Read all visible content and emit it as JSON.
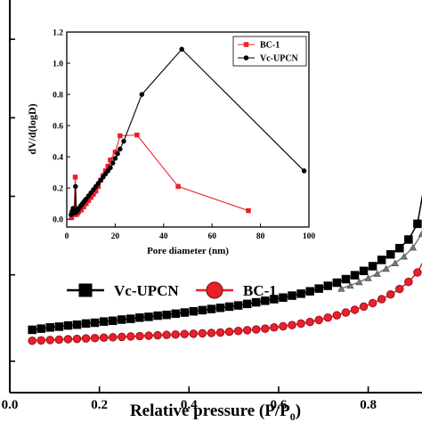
{
  "chart_data": [
    {
      "type": "line",
      "role": "main",
      "xlabel": "Relative pressure (P/P",
      "xlabel_sub": "0",
      "xlabel_close": ")",
      "ylabel": "",
      "xlim": [
        0.0,
        0.93
      ],
      "ylim": [
        0,
        1
      ],
      "x_ticks": [
        "0.0",
        "0.2",
        "0.4",
        "0.6",
        "0.8"
      ],
      "x_tick_values": [
        0.0,
        0.2,
        0.4,
        0.6,
        0.8
      ],
      "y_ticks_unlabeled": [
        0.08,
        0.3,
        0.5,
        0.7,
        0.9
      ],
      "legend_position": "left, below inset",
      "series": [
        {
          "name": "Vc-UPCN",
          "color": "#000000",
          "marker": "square",
          "x": [
            0.05,
            0.07,
            0.09,
            0.11,
            0.13,
            0.15,
            0.17,
            0.19,
            0.21,
            0.23,
            0.25,
            0.27,
            0.29,
            0.31,
            0.33,
            0.35,
            0.37,
            0.39,
            0.41,
            0.43,
            0.45,
            0.47,
            0.49,
            0.51,
            0.53,
            0.55,
            0.57,
            0.59,
            0.61,
            0.63,
            0.65,
            0.67,
            0.69,
            0.71,
            0.73,
            0.75,
            0.77,
            0.79,
            0.81,
            0.83,
            0.85,
            0.87,
            0.89,
            0.91,
            0.93
          ],
          "y": [
            0.16,
            0.163,
            0.166,
            0.168,
            0.171,
            0.173,
            0.176,
            0.178,
            0.181,
            0.183,
            0.186,
            0.188,
            0.191,
            0.193,
            0.196,
            0.198,
            0.201,
            0.204,
            0.207,
            0.21,
            0.213,
            0.216,
            0.219,
            0.222,
            0.226,
            0.23,
            0.234,
            0.238,
            0.242,
            0.247,
            0.252,
            0.258,
            0.265,
            0.272,
            0.28,
            0.289,
            0.299,
            0.31,
            0.322,
            0.338,
            0.352,
            0.368,
            0.39,
            0.43,
            0.56
          ]
        },
        {
          "name": "BC-1",
          "color": "#e8202a",
          "marker": "circle",
          "x": [
            0.05,
            0.07,
            0.09,
            0.11,
            0.13,
            0.15,
            0.17,
            0.19,
            0.21,
            0.23,
            0.25,
            0.27,
            0.29,
            0.31,
            0.33,
            0.35,
            0.37,
            0.39,
            0.41,
            0.43,
            0.45,
            0.47,
            0.49,
            0.51,
            0.53,
            0.55,
            0.57,
            0.59,
            0.61,
            0.63,
            0.65,
            0.67,
            0.69,
            0.71,
            0.73,
            0.75,
            0.77,
            0.79,
            0.81,
            0.83,
            0.85,
            0.87,
            0.89,
            0.91,
            0.93
          ],
          "y": [
            0.132,
            0.133,
            0.134,
            0.135,
            0.136,
            0.137,
            0.138,
            0.139,
            0.14,
            0.141,
            0.142,
            0.143,
            0.144,
            0.145,
            0.146,
            0.147,
            0.148,
            0.149,
            0.15,
            0.151,
            0.152,
            0.153,
            0.155,
            0.157,
            0.159,
            0.161,
            0.163,
            0.166,
            0.169,
            0.172,
            0.176,
            0.18,
            0.185,
            0.191,
            0.197,
            0.204,
            0.211,
            0.219,
            0.228,
            0.238,
            0.25,
            0.264,
            0.282,
            0.306,
            0.35
          ]
        },
        {
          "name": "",
          "color": "#777777",
          "marker": "triangle",
          "x": [
            0.74,
            0.76,
            0.78,
            0.8,
            0.82,
            0.84,
            0.86,
            0.88,
            0.9,
            0.92
          ],
          "y": [
            0.265,
            0.273,
            0.282,
            0.292,
            0.303,
            0.316,
            0.33,
            0.347,
            0.37,
            0.405
          ]
        }
      ]
    },
    {
      "type": "line",
      "role": "inset",
      "xlabel": "Pore diameter (nm)",
      "ylabel": "dV/d(logD)",
      "xlim": [
        0,
        100
      ],
      "ylim": [
        -0.05,
        1.2
      ],
      "x_ticks": [
        "0",
        "20",
        "40",
        "60",
        "80",
        "100"
      ],
      "x_tick_values": [
        0,
        20,
        40,
        60,
        80,
        100
      ],
      "y_ticks": [
        "0.0",
        "0.2",
        "0.4",
        "0.6",
        "0.8",
        "1.0",
        "1.2"
      ],
      "y_tick_values": [
        0.0,
        0.2,
        0.4,
        0.6,
        0.8,
        1.0,
        1.2
      ],
      "legend_position": "top-right",
      "series": [
        {
          "name": "BC-1",
          "color": "#e8202a",
          "marker": "square",
          "x": [
            2.0,
            3.0,
            3.5,
            4.0,
            4.5,
            5.0,
            6.0,
            7.0,
            8.0,
            9.0,
            10.0,
            11.0,
            12.0,
            13.0,
            14.0,
            15.0,
            16.0,
            17.0,
            18.0,
            20.0,
            22.0,
            29.0,
            46.0,
            75.0
          ],
          "y": [
            0.01,
            0.03,
            0.27,
            0.03,
            0.04,
            0.05,
            0.06,
            0.08,
            0.1,
            0.12,
            0.14,
            0.16,
            0.18,
            0.21,
            0.25,
            0.28,
            0.31,
            0.34,
            0.38,
            0.43,
            0.535,
            0.54,
            0.21,
            0.055
          ]
        },
        {
          "name": "Vc-UPCN",
          "color": "#000000",
          "marker": "circle",
          "x": [
            1.8,
            2.2,
            2.6,
            3.0,
            3.3,
            3.6,
            3.9,
            4.2,
            4.6,
            5.0,
            5.5,
            6.0,
            6.5,
            7.0,
            7.5,
            8.0,
            9.0,
            10.0,
            11.0,
            12.0,
            13.0,
            14.0,
            15.0,
            16.0,
            17.0,
            18.0,
            19.0,
            20.0,
            21.0,
            22.0,
            23.5,
            31.0,
            47.5,
            98.0
          ],
          "y": [
            0.03,
            0.05,
            0.07,
            0.06,
            0.04,
            0.21,
            0.06,
            0.05,
            0.06,
            0.07,
            0.08,
            0.09,
            0.1,
            0.11,
            0.12,
            0.13,
            0.15,
            0.17,
            0.19,
            0.21,
            0.23,
            0.25,
            0.27,
            0.29,
            0.31,
            0.33,
            0.36,
            0.39,
            0.42,
            0.45,
            0.5,
            0.8,
            1.09,
            0.31
          ]
        }
      ]
    }
  ]
}
